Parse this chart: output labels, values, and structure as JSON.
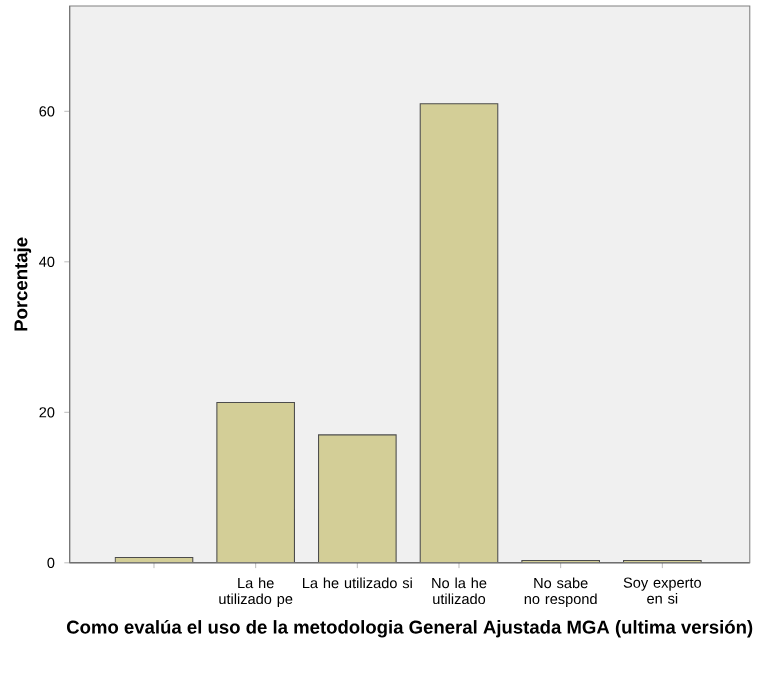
{
  "chart_data": {
    "type": "bar",
    "xlabel": "Como evalúa el uso de la metodologia General Ajustada MGA (ultima versión)",
    "ylabel": "Porcentaje",
    "categories": [
      null,
      "La he utilizado pe",
      "La he utilizado si",
      "No la he utilizado",
      "No sabe no respond",
      "Soy experto en si"
    ],
    "values": [
      0.7,
      21.3,
      17.0,
      61.0,
      0.3,
      0.3
    ],
    "color": "#d3ce97",
    "ylim": [
      0,
      74
    ],
    "yticks": [
      0,
      20,
      40,
      60
    ],
    "grid": false
  }
}
